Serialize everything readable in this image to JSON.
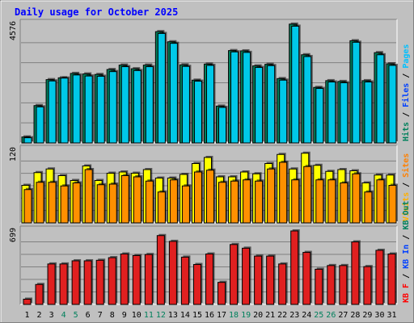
{
  "chart_data": {
    "type": "bar",
    "title": "Daily usage for October 2025",
    "categories": [
      "1",
      "2",
      "3",
      "4",
      "5",
      "6",
      "7",
      "8",
      "9",
      "10",
      "11",
      "12",
      "13",
      "14",
      "15",
      "16",
      "17",
      "18",
      "19",
      "20",
      "21",
      "22",
      "23",
      "24",
      "25",
      "26",
      "27",
      "28",
      "29",
      "30",
      "31"
    ],
    "weekend_days": [
      "4",
      "5",
      "11",
      "12",
      "18",
      "19",
      "25",
      "26"
    ],
    "panels": [
      {
        "id": "hits-files",
        "ymax_label": "4576",
        "ymax": 4576,
        "side_labels": [
          {
            "text": "Hits",
            "color": "#00805c"
          },
          {
            "text": "Files",
            "color": "#0040ff"
          },
          {
            "text": "Pages",
            "color": "#00c0ff"
          }
        ],
        "series": [
          {
            "name": "Hits",
            "color": "#00805c",
            "values": [
              230,
              1440,
              2440,
              2510,
              2680,
              2660,
              2640,
              2830,
              3000,
              2860,
              3000,
              4290,
              3900,
              3010,
              2420,
              3040,
              1420,
              3560,
              3550,
              2970,
              3030,
              2480,
              4580,
              3400,
              2140,
              2400,
              2370,
              3940,
              2400,
              3480,
              3050
            ]
          },
          {
            "name": "Files",
            "color": "#00c8e8",
            "values": [
              200,
              1390,
              2390,
              2500,
              2620,
              2580,
              2570,
              2750,
              2940,
              2790,
              2940,
              4220,
              3840,
              2950,
              2380,
              2990,
              1370,
              3510,
              3490,
              2910,
              2980,
              2420,
              4500,
              3330,
              2100,
              2350,
              2320,
              3880,
              2350,
              3400,
              2990
            ]
          }
        ]
      },
      {
        "id": "visits-sites",
        "ymax_label": "120",
        "ymax": 120,
        "side_labels": [
          {
            "text": "Visits",
            "color": "#ffb000"
          },
          {
            "text": "Sites",
            "color": "#ff8000"
          }
        ],
        "series": [
          {
            "name": "Visits",
            "color": "#ffff00",
            "values": [
              62,
              83,
              89,
              78,
              70,
              94,
              70,
              82,
              84,
              82,
              88,
              74,
              74,
              80,
              98,
              108,
              76,
              76,
              84,
              81,
              98,
              113,
              89,
              115,
              95,
              85,
              88,
              86,
              66,
              79,
              79
            ]
          },
          {
            "name": "Sites",
            "color": "#ff9000",
            "values": [
              55,
              67,
              67,
              61,
              66,
              88,
              63,
              64,
              78,
              76,
              69,
              51,
              71,
              61,
              84,
              87,
              67,
              69,
              71,
              69,
              89,
              100,
              71,
              93,
              71,
              71,
              66,
              81,
              51,
              71,
              62
            ]
          }
        ]
      },
      {
        "id": "kbytes",
        "ymax_label": "699",
        "ymax": 699,
        "side_labels": [
          {
            "text": "KB F",
            "color": "#ff0000"
          },
          {
            "text": "KB In",
            "color": "#0040ff"
          },
          {
            "text": "KB Out",
            "color": "#00805c"
          }
        ],
        "series": [
          {
            "name": "KB F",
            "color": "#e02020",
            "values": [
              50,
              190,
              385,
              385,
              415,
              415,
              420,
              445,
              480,
              465,
              475,
              655,
              600,
              450,
              380,
              480,
              210,
              570,
              535,
              460,
              460,
              385,
              699,
              495,
              335,
              370,
              370,
              595,
              360,
              515,
              480
            ]
          }
        ]
      }
    ]
  }
}
